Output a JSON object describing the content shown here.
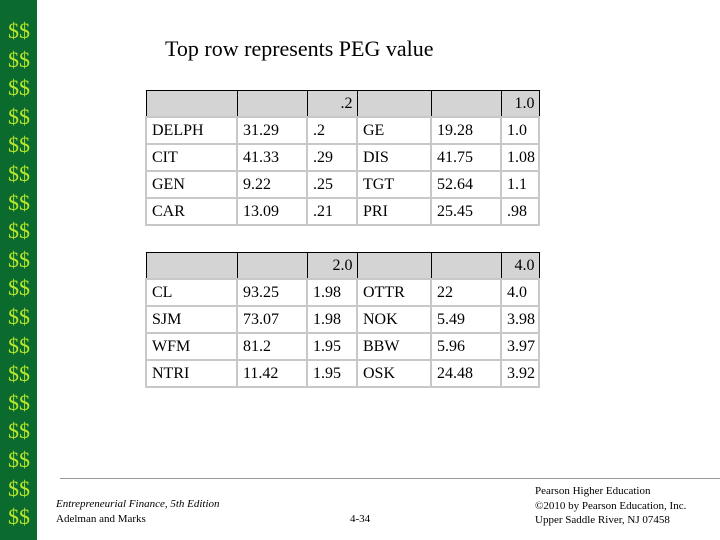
{
  "sidebar": [
    "$$",
    "$$",
    "$$",
    "$$",
    "$$",
    "$$",
    "$$",
    "$$",
    "$$",
    "$$",
    "$$",
    "$$",
    "$$",
    "$$",
    "$$",
    "$$",
    "$$",
    "$$"
  ],
  "title": "Top row represents PEG value",
  "tables": [
    {
      "rows": [
        [
          null,
          null,
          ".2",
          null,
          null,
          "1.0"
        ],
        [
          "DELPH",
          "31.29",
          ".2",
          "GE",
          "19.28",
          "1.0"
        ],
        [
          "CIT",
          "41.33",
          ".29",
          "DIS",
          "41.75",
          "1.08"
        ],
        [
          "GEN",
          "9.22",
          ".25",
          "TGT",
          "52.64",
          "1.1"
        ],
        [
          "CAR",
          "13.09",
          ".21",
          "PRI",
          "25.45",
          ".98"
        ]
      ]
    },
    {
      "rows": [
        [
          null,
          null,
          "2.0",
          null,
          null,
          "4.0"
        ],
        [
          "CL",
          "93.25",
          "1.98",
          "OTTR",
          "22",
          "4.0"
        ],
        [
          "SJM",
          "73.07",
          "1.98",
          "NOK",
          "5.49",
          "3.98"
        ],
        [
          "WFM",
          "81.2",
          "1.95",
          "BBW",
          "5.96",
          "3.97"
        ],
        [
          "NTRI",
          "11.42",
          "1.95",
          "OSK",
          "24.48",
          "3.92"
        ]
      ]
    }
  ],
  "footer": {
    "book": "Entrepreneurial Finance, 5th Edition",
    "authors": "Adelman and Marks",
    "page": "4-34",
    "publisher": [
      "Pearson Higher Education",
      "©2010 by Pearson Education, Inc.",
      "Upper Saddle River, NJ 07458"
    ]
  }
}
